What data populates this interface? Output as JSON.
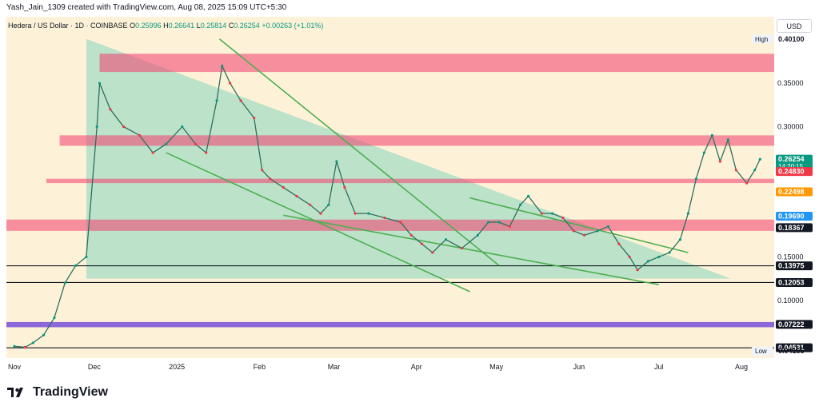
{
  "credit": "Yash_Jain_1309 created with TradingView.com, Aug 08, 2025 15:09 UTC+5:30",
  "header": {
    "symbol": "Hedera / US Dollar · 1D · COINBASE",
    "open_label": "O",
    "open": "0.25996",
    "high_label": "H",
    "high": "0.26641",
    "low_label": "L",
    "low": "0.25814",
    "close_label": "C",
    "close": "0.26254",
    "change": "+0.00263 (+1.01%)"
  },
  "currency_button": "USD",
  "brand": "TradingView",
  "colors": {
    "accent_green": "#089981",
    "band_pink": "#f23d6d",
    "band_purple": "#6f43d9",
    "trend_green": "#4caf50",
    "triangle_fill": "#a5dcc4",
    "chart_bg": "#fdf2d7"
  },
  "chart_data": {
    "type": "candlestick",
    "symbol": "Hedera / US Dollar",
    "interval": "1D",
    "exchange": "COINBASE",
    "ylim": [
      0.035,
      0.43
    ],
    "y_ticks": [
      "0.35000",
      "0.30000",
      "0.15000",
      "0.10000"
    ],
    "x_ticks": [
      {
        "label": "Nov",
        "date": "2024-11-01"
      },
      {
        "label": "Dec",
        "date": "2024-12-01"
      },
      {
        "label": "2025",
        "date": "2025-01-01"
      },
      {
        "label": "Feb",
        "date": "2025-02-01"
      },
      {
        "label": "Mar",
        "date": "2025-03-01"
      },
      {
        "label": "Apr",
        "date": "2025-04-01"
      },
      {
        "label": "May",
        "date": "2025-05-01"
      },
      {
        "label": "Jun",
        "date": "2025-06-01"
      },
      {
        "label": "Jul",
        "date": "2025-07-01"
      },
      {
        "label": "Aug",
        "date": "2025-08-01"
      }
    ],
    "price_path": [
      [
        "2024-11-01",
        0.047
      ],
      [
        "2024-11-05",
        0.046
      ],
      [
        "2024-11-08",
        0.051
      ],
      [
        "2024-11-12",
        0.06
      ],
      [
        "2024-11-16",
        0.08
      ],
      [
        "2024-11-20",
        0.12
      ],
      [
        "2024-11-24",
        0.14
      ],
      [
        "2024-11-28",
        0.15
      ],
      [
        "2024-12-02",
        0.3
      ],
      [
        "2024-12-03",
        0.35
      ],
      [
        "2024-12-07",
        0.32
      ],
      [
        "2024-12-12",
        0.3
      ],
      [
        "2024-12-18",
        0.29
      ],
      [
        "2024-12-23",
        0.27
      ],
      [
        "2024-12-28",
        0.28
      ],
      [
        "2025-01-03",
        0.3
      ],
      [
        "2025-01-08",
        0.28
      ],
      [
        "2025-01-12",
        0.27
      ],
      [
        "2025-01-16",
        0.33
      ],
      [
        "2025-01-18",
        0.37
      ],
      [
        "2025-01-21",
        0.35
      ],
      [
        "2025-01-25",
        0.33
      ],
      [
        "2025-01-30",
        0.31
      ],
      [
        "2025-02-02",
        0.25
      ],
      [
        "2025-02-05",
        0.24
      ],
      [
        "2025-02-10",
        0.23
      ],
      [
        "2025-02-15",
        0.22
      ],
      [
        "2025-02-20",
        0.21
      ],
      [
        "2025-02-24",
        0.2
      ],
      [
        "2025-02-27",
        0.21
      ],
      [
        "2025-03-02",
        0.26
      ],
      [
        "2025-03-05",
        0.23
      ],
      [
        "2025-03-09",
        0.2
      ],
      [
        "2025-03-14",
        0.2
      ],
      [
        "2025-03-20",
        0.195
      ],
      [
        "2025-03-26",
        0.19
      ],
      [
        "2025-03-30",
        0.175
      ],
      [
        "2025-04-03",
        0.165
      ],
      [
        "2025-04-07",
        0.155
      ],
      [
        "2025-04-12",
        0.17
      ],
      [
        "2025-04-18",
        0.16
      ],
      [
        "2025-04-24",
        0.175
      ],
      [
        "2025-04-28",
        0.19
      ],
      [
        "2025-05-02",
        0.19
      ],
      [
        "2025-05-06",
        0.185
      ],
      [
        "2025-05-10",
        0.21
      ],
      [
        "2025-05-13",
        0.22
      ],
      [
        "2025-05-18",
        0.2
      ],
      [
        "2025-05-22",
        0.2
      ],
      [
        "2025-05-26",
        0.195
      ],
      [
        "2025-05-30",
        0.18
      ],
      [
        "2025-06-03",
        0.175
      ],
      [
        "2025-06-08",
        0.18
      ],
      [
        "2025-06-12",
        0.185
      ],
      [
        "2025-06-16",
        0.165
      ],
      [
        "2025-06-20",
        0.15
      ],
      [
        "2025-06-23",
        0.135
      ],
      [
        "2025-06-27",
        0.145
      ],
      [
        "2025-07-01",
        0.15
      ],
      [
        "2025-07-05",
        0.155
      ],
      [
        "2025-07-09",
        0.17
      ],
      [
        "2025-07-12",
        0.2
      ],
      [
        "2025-07-15",
        0.24
      ],
      [
        "2025-07-18",
        0.27
      ],
      [
        "2025-07-21",
        0.29
      ],
      [
        "2025-07-24",
        0.26
      ],
      [
        "2025-07-27",
        0.285
      ],
      [
        "2025-07-30",
        0.25
      ],
      [
        "2025-08-03",
        0.235
      ],
      [
        "2025-08-06",
        0.25
      ],
      [
        "2025-08-08",
        0.2625
      ]
    ],
    "price_labels": [
      {
        "text": "0.40100",
        "value": 0.401,
        "caption": "High",
        "style": "plain"
      },
      {
        "text": "0.26254",
        "value": 0.26254,
        "caption": "",
        "style": "current",
        "subtext": "14:20:15"
      },
      {
        "text": "0.24830",
        "value": 0.2483,
        "caption": "",
        "style": "red"
      },
      {
        "text": "0.22498",
        "value": 0.22498,
        "caption": "",
        "style": "orange"
      },
      {
        "text": "0.19690",
        "value": 0.1969,
        "caption": "",
        "style": "blue"
      },
      {
        "text": "0.18367",
        "value": 0.18367,
        "caption": "",
        "style": "line"
      },
      {
        "text": "0.13975",
        "value": 0.13975,
        "caption": "",
        "style": "line"
      },
      {
        "text": "0.12053",
        "value": 0.12053,
        "caption": "",
        "style": "line"
      },
      {
        "text": "0.07222",
        "value": 0.07222,
        "caption": "",
        "style": "line"
      },
      {
        "text": "0.04531",
        "value": 0.04531,
        "caption": "",
        "style": "line"
      },
      {
        "text": "0.04155",
        "value": 0.04155,
        "caption": "Low",
        "style": "plain"
      }
    ],
    "zones": [
      {
        "color": "pink",
        "y": [
          0.363,
          0.384
        ],
        "from": "2024-12-03"
      },
      {
        "color": "pink",
        "y": [
          0.278,
          0.29
        ],
        "from": "2024-11-18"
      },
      {
        "color": "pink",
        "y": [
          0.235,
          0.24
        ],
        "from": "2024-11-13"
      },
      {
        "color": "pink",
        "y": [
          0.18,
          0.193
        ]
      },
      {
        "color": "purple",
        "y": [
          0.069,
          0.075
        ]
      }
    ],
    "horizontal_lines": [
      0.13975,
      0.12053,
      0.04531
    ],
    "triangle": {
      "from": "2024-11-28",
      "apex": "2025-07-28",
      "top": 0.401,
      "bottom": 0.125
    },
    "trendlines": [
      {
        "from": [
          "2025-01-17",
          0.401
        ],
        "to": [
          "2025-05-02",
          0.14
        ]
      },
      {
        "from": [
          "2024-12-28",
          0.27
        ],
        "to": [
          "2025-04-21",
          0.11
        ]
      },
      {
        "from": [
          "2025-04-21",
          0.218
        ],
        "to": [
          "2025-07-12",
          0.155
        ]
      },
      {
        "from": [
          "2025-02-10",
          0.198
        ],
        "to": [
          "2025-07-01",
          0.118
        ]
      }
    ]
  }
}
